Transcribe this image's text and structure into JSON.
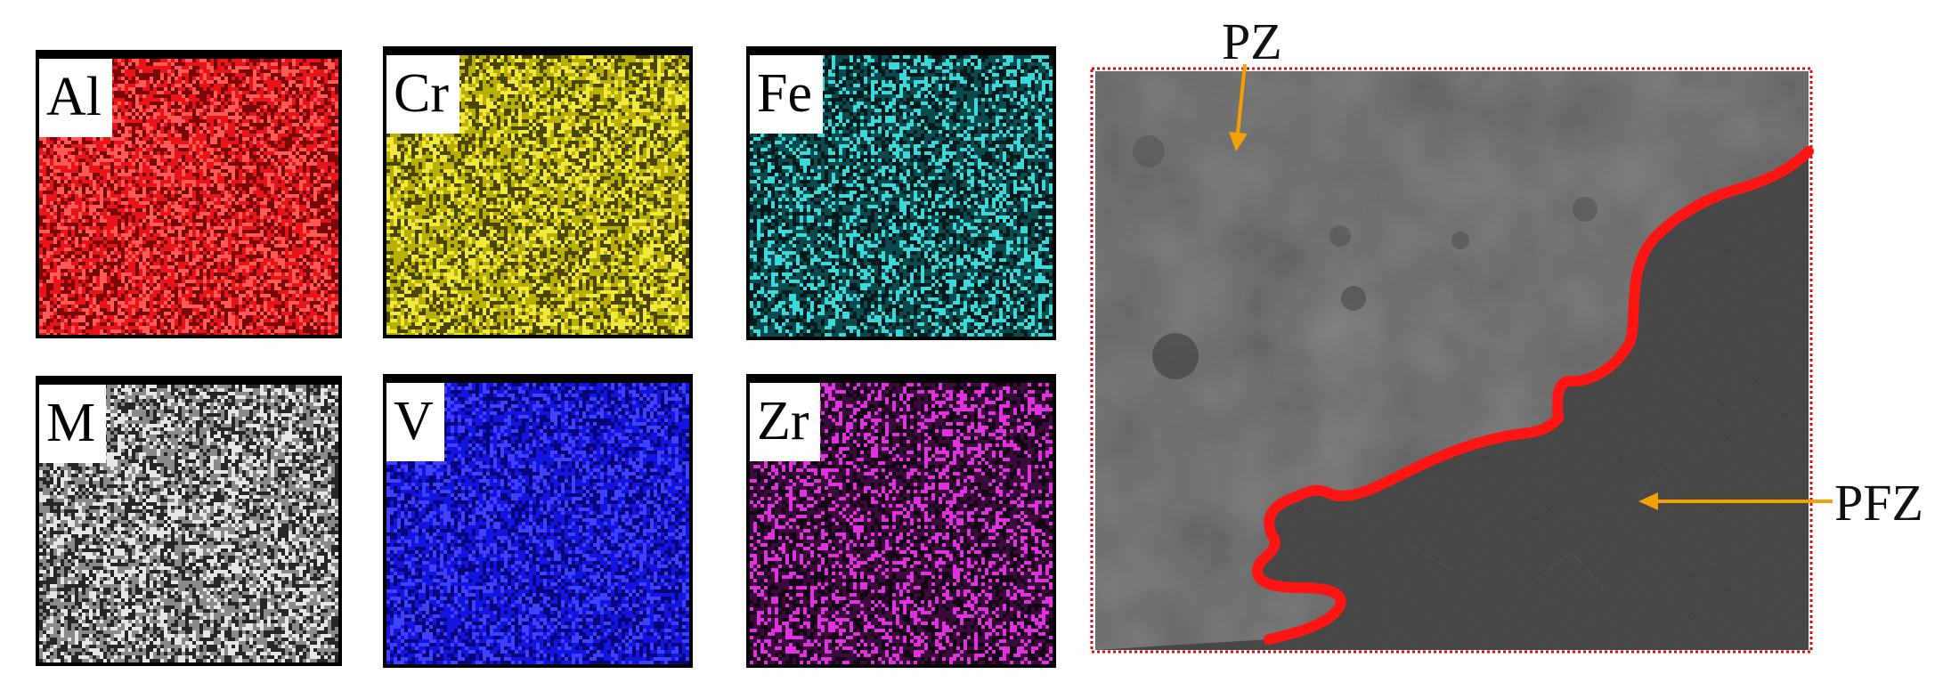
{
  "element_maps": [
    {
      "key": "al",
      "label": "Al",
      "color": "#e8141a",
      "dark": "#7a0808",
      "light": "#ff5a55"
    },
    {
      "key": "cr",
      "label": "Cr",
      "color": "#b8b000",
      "dark": "#4a4600",
      "light": "#f0e83a"
    },
    {
      "key": "fe",
      "label": "Fe",
      "color": "#0a4a4c",
      "dark": "#021a1c",
      "light": "#3ad8d8"
    },
    {
      "key": "m",
      "label": "M",
      "color": "#8a8a8a",
      "dark": "#262626",
      "light": "#e6e6e6"
    },
    {
      "key": "v",
      "label": "V",
      "color": "#1414e0",
      "dark": "#06067a",
      "light": "#4040ff"
    },
    {
      "key": "zr",
      "label": "Zr",
      "color": "#3a0a3a",
      "dark": "#140314",
      "light": "#e030e0"
    }
  ],
  "micrograph": {
    "labels": {
      "pz": "PZ",
      "pfz": "PFZ"
    },
    "boundary_color": "#ff1414",
    "arrow_color": "#f5a000",
    "frame_color": "#d01010"
  }
}
